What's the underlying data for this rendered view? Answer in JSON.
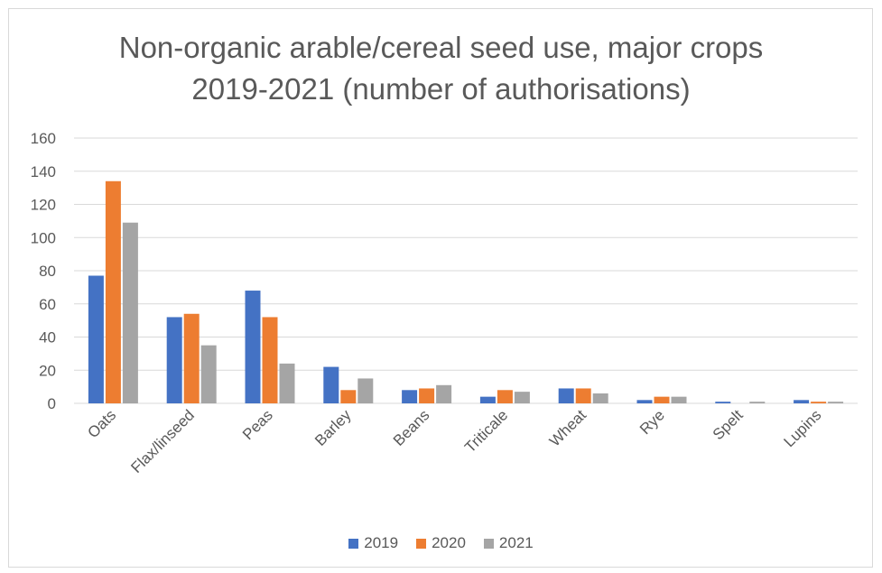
{
  "chart_data": {
    "type": "bar",
    "title_lines": [
      "Non-organic arable/cereal seed use, major crops",
      "2019-2021 (number of authorisations)"
    ],
    "categories": [
      "Oats",
      "Flax/linseed",
      "Peas",
      "Barley",
      "Beans",
      "Triticale",
      "Wheat",
      "Rye",
      "Spelt",
      "Lupins"
    ],
    "series": [
      {
        "name": "2019",
        "color": "#4472c4",
        "values": [
          77,
          52,
          68,
          22,
          8,
          4,
          9,
          2,
          1,
          2
        ]
      },
      {
        "name": "2020",
        "color": "#ed7d31",
        "values": [
          134,
          54,
          52,
          8,
          9,
          8,
          9,
          4,
          0,
          1
        ]
      },
      {
        "name": "2021",
        "color": "#a5a5a5",
        "values": [
          109,
          35,
          24,
          15,
          11,
          7,
          6,
          4,
          1,
          1
        ]
      }
    ],
    "y_ticks": [
      "0",
      "20",
      "40",
      "60",
      "80",
      "100",
      "120",
      "140",
      "160"
    ],
    "ylim": [
      0,
      160
    ],
    "grid": true,
    "legend_position": "bottom",
    "xlabel": "",
    "ylabel": ""
  }
}
